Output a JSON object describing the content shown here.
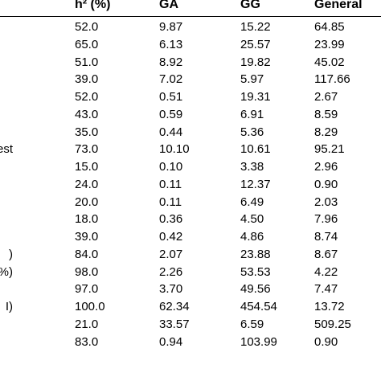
{
  "table": {
    "headers": {
      "h2": "h² (%)",
      "ga": "GA",
      "gg": "GG",
      "general": "General"
    },
    "rows": [
      {
        "label": "",
        "h2": "52.0",
        "ga": "9.87",
        "gg": "15.22",
        "general": "64.85"
      },
      {
        "label": "",
        "h2": "65.0",
        "ga": "6.13",
        "gg": "25.57",
        "general": "23.99"
      },
      {
        "label": "",
        "h2": "51.0",
        "ga": "8.92",
        "gg": "19.82",
        "general": "45.02"
      },
      {
        "label": "",
        "h2": "39.0",
        "ga": "7.02",
        "gg": "5.97",
        "general": "117.66"
      },
      {
        "label": "",
        "h2": "52.0",
        "ga": "0.51",
        "gg": "19.31",
        "general": "2.67"
      },
      {
        "label": "",
        "h2": "43.0",
        "ga": "0.59",
        "gg": "6.91",
        "general": "8.59"
      },
      {
        "label": "",
        "h2": "35.0",
        "ga": "0.44",
        "gg": "5.36",
        "general": "8.29"
      },
      {
        "label": "est",
        "h2": "73.0",
        "ga": "10.10",
        "gg": "10.61",
        "general": "95.21"
      },
      {
        "label": "",
        "h2": "15.0",
        "ga": "0.10",
        "gg": "3.38",
        "general": "2.96"
      },
      {
        "label": "",
        "h2": "24.0",
        "ga": "0.11",
        "gg": "12.37",
        "general": "0.90"
      },
      {
        "label": "",
        "h2": "20.0",
        "ga": "0.11",
        "gg": "6.49",
        "general": "2.03"
      },
      {
        "label": "",
        "h2": "18.0",
        "ga": "0.36",
        "gg": "4.50",
        "general": "7.96"
      },
      {
        "label": "",
        "h2": "39.0",
        "ga": "0.42",
        "gg": "4.86",
        "general": "8.74"
      },
      {
        "label": ")",
        "h2": "84.0",
        "ga": "2.07",
        "gg": "23.88",
        "general": "8.67"
      },
      {
        "label": "%)",
        "h2": "98.0",
        "ga": "2.26",
        "gg": "53.53",
        "general": "4.22"
      },
      {
        "label": "",
        "h2": "97.0",
        "ga": "3.70",
        "gg": "49.56",
        "general": "7.47"
      },
      {
        "label": "I)",
        "h2": "100.0",
        "ga": "62.34",
        "gg": "454.54",
        "general": "13.72"
      },
      {
        "label": "",
        "h2": "21.0",
        "ga": "33.57",
        "gg": "6.59",
        "general": "509.25"
      },
      {
        "label": "",
        "h2": "83.0",
        "ga": "0.94",
        "gg": "103.99",
        "general": "0.90"
      }
    ]
  }
}
